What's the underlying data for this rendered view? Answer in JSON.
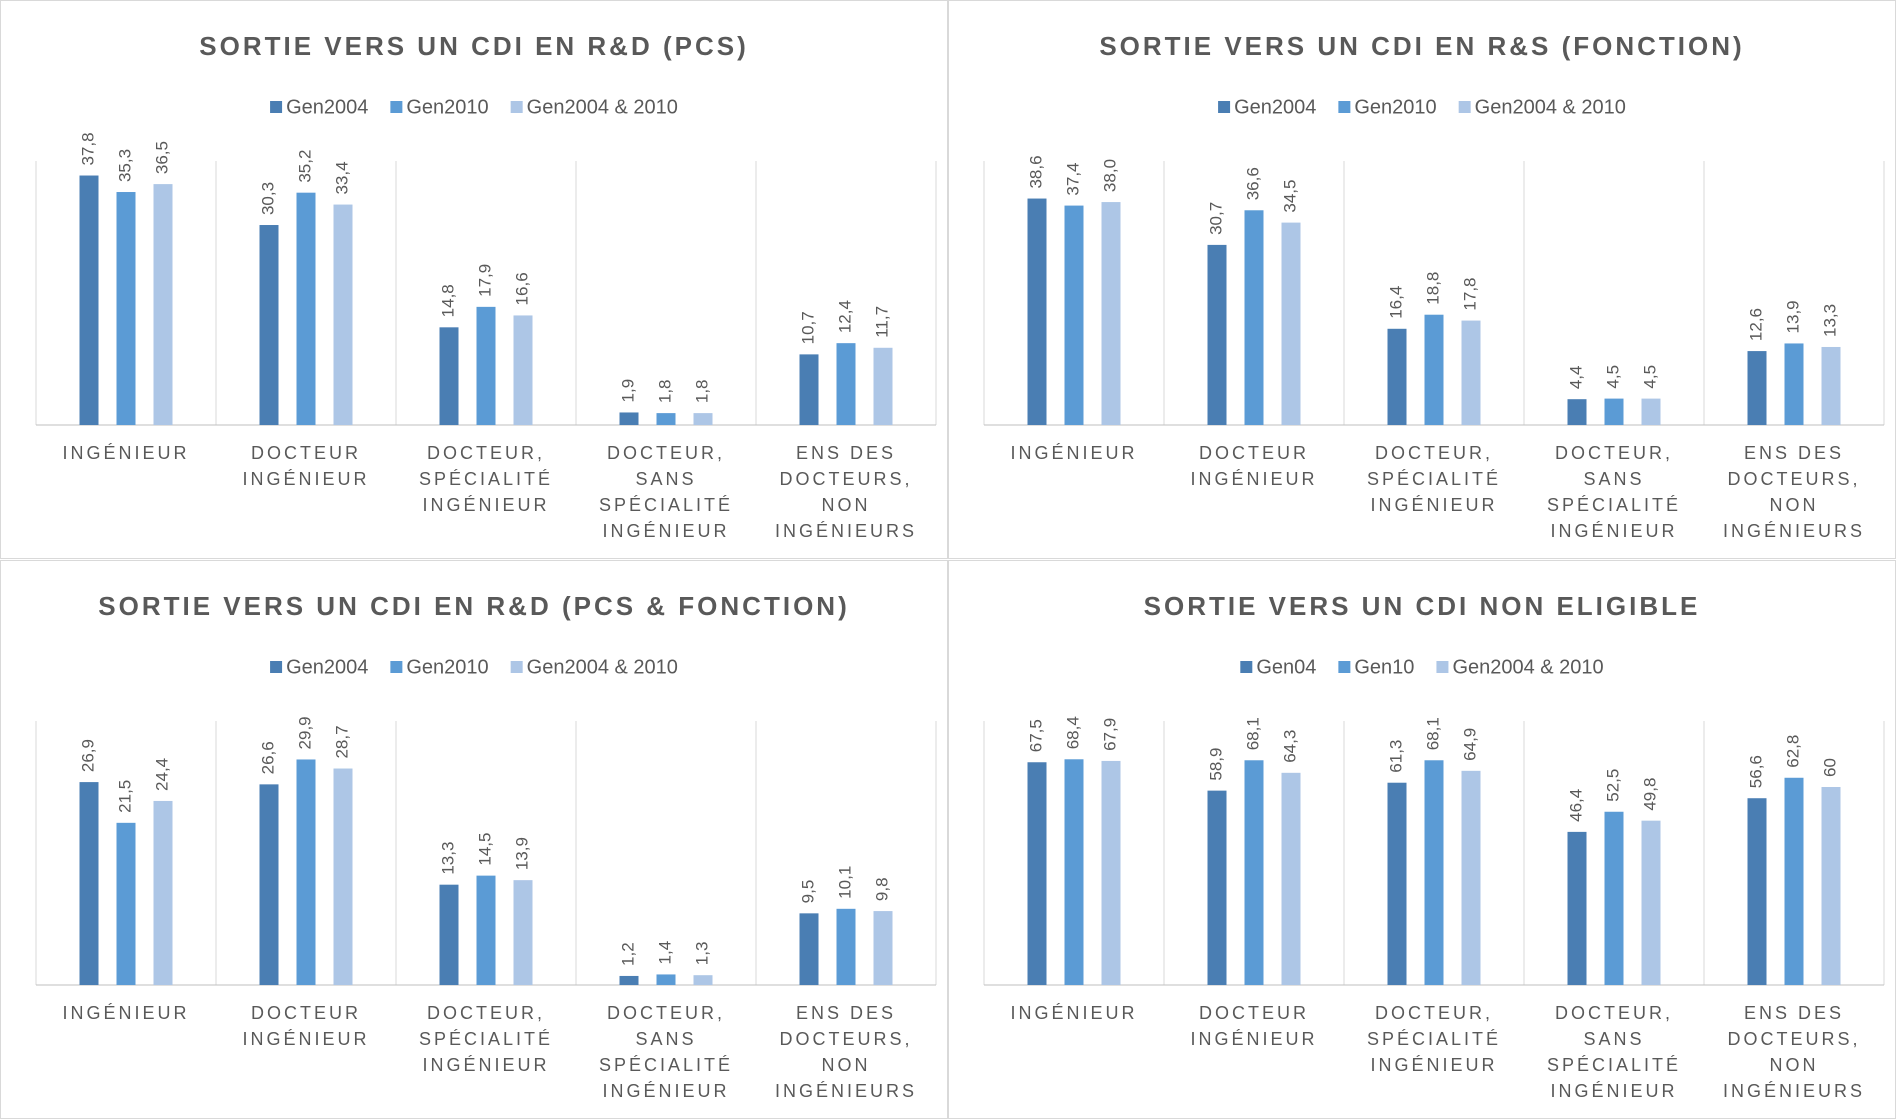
{
  "chart_data": [
    {
      "type": "bar",
      "title": "SORTIE VERS UN CDI EN R&D (PCS)",
      "categories": [
        "INGÉNIEUR",
        "DOCTEUR\nINGÉNIEUR",
        "DOCTEUR,\nSPÉCIALITÉ\nINGÉNIEUR",
        "DOCTEUR,\nSANS\nSPÉCIALITÉ\nINGÉNIEUR",
        "ENS DES\nDOCTEURS,\nNON\nINGÉNIEURS"
      ],
      "ylim": [
        0,
        40
      ],
      "series": [
        {
          "name": "Gen2004",
          "color": "#4a7eb3",
          "values": [
            37.8,
            30.3,
            14.8,
            1.9,
            10.7
          ],
          "value_labels": [
            "37,8",
            "30,3",
            "14,8",
            "1,9",
            "10,7"
          ]
        },
        {
          "name": "Gen2010",
          "color": "#5b9bd5",
          "values": [
            35.3,
            35.2,
            17.9,
            1.8,
            12.4
          ],
          "value_labels": [
            "35,3",
            "35,2",
            "17,9",
            "1,8",
            "12,4"
          ]
        },
        {
          "name": "Gen2004 & 2010",
          "color": "#adc6e6",
          "values": [
            36.5,
            33.4,
            16.6,
            1.8,
            11.7
          ],
          "value_labels": [
            "36,5",
            "33,4",
            "16,6",
            "1,8",
            "11,7"
          ]
        }
      ]
    },
    {
      "type": "bar",
      "title": "SORTIE VERS UN CDI EN R&S (FONCTION)",
      "categories": [
        "INGÉNIEUR",
        "DOCTEUR\nINGÉNIEUR",
        "DOCTEUR,\nSPÉCIALITÉ\nINGÉNIEUR",
        "DOCTEUR,\nSANS\nSPÉCIALITÉ\nINGÉNIEUR",
        "ENS DES\nDOCTEURS,\nNON\nINGÉNIEURS"
      ],
      "ylim": [
        0,
        45
      ],
      "series": [
        {
          "name": "Gen2004",
          "color": "#4a7eb3",
          "values": [
            38.6,
            30.7,
            16.4,
            4.4,
            12.6
          ],
          "value_labels": [
            "38,6",
            "30,7",
            "16,4",
            "4,4",
            "12,6"
          ]
        },
        {
          "name": "Gen2010",
          "color": "#5b9bd5",
          "values": [
            37.4,
            36.6,
            18.8,
            4.5,
            13.9
          ],
          "value_labels": [
            "37,4",
            "36,6",
            "18,8",
            "4,5",
            "13,9"
          ]
        },
        {
          "name": "Gen2004 & 2010",
          "color": "#adc6e6",
          "values": [
            38.0,
            34.5,
            17.8,
            4.5,
            13.3
          ],
          "value_labels": [
            "38,0",
            "34,5",
            "17,8",
            "4,5",
            "13,3"
          ]
        }
      ]
    },
    {
      "type": "bar",
      "title": "SORTIE VERS UN CDI EN R&D (PCS & FONCTION)",
      "categories": [
        "INGÉNIEUR",
        "DOCTEUR\nINGÉNIEUR",
        "DOCTEUR,\nSPÉCIALITÉ\nINGÉNIEUR",
        "DOCTEUR,\nSANS\nSPÉCIALITÉ\nINGÉNIEUR",
        "ENS DES\nDOCTEURS,\nNON\nINGÉNIEURS"
      ],
      "ylim": [
        0,
        35
      ],
      "series": [
        {
          "name": "Gen2004",
          "color": "#4a7eb3",
          "values": [
            26.9,
            26.6,
            13.3,
            1.2,
            9.5
          ],
          "value_labels": [
            "26,9",
            "26,6",
            "13,3",
            "1,2",
            "9,5"
          ]
        },
        {
          "name": "Gen2010",
          "color": "#5b9bd5",
          "values": [
            21.5,
            29.9,
            14.5,
            1.4,
            10.1
          ],
          "value_labels": [
            "21,5",
            "29,9",
            "14,5",
            "1,4",
            "10,1"
          ]
        },
        {
          "name": "Gen2004 & 2010",
          "color": "#adc6e6",
          "values": [
            24.4,
            28.7,
            13.9,
            1.3,
            9.8
          ],
          "value_labels": [
            "24,4",
            "28,7",
            "13,9",
            "1,3",
            "9,8"
          ]
        }
      ]
    },
    {
      "type": "bar",
      "title": "SORTIE VERS UN CDI NON ELIGIBLE",
      "categories": [
        "INGÉNIEUR",
        "DOCTEUR\nINGÉNIEUR",
        "DOCTEUR,\nSPÉCIALITÉ\nINGÉNIEUR",
        "DOCTEUR,\nSANS\nSPÉCIALITÉ\nINGÉNIEUR",
        "ENS DES\nDOCTEURS,\nNON\nINGÉNIEURS"
      ],
      "ylim": [
        0,
        80
      ],
      "series": [
        {
          "name": "Gen04",
          "color": "#4a7eb3",
          "values": [
            67.5,
            58.9,
            61.3,
            46.4,
            56.6
          ],
          "value_labels": [
            "67,5",
            "58,9",
            "61,3",
            "46,4",
            "56,6"
          ]
        },
        {
          "name": "Gen10",
          "color": "#5b9bd5",
          "values": [
            68.4,
            68.1,
            68.1,
            52.5,
            62.8
          ],
          "value_labels": [
            "68,4",
            "68,1",
            "68,1",
            "52,5",
            "62,8"
          ]
        },
        {
          "name": "Gen2004 & 2010",
          "color": "#adc6e6",
          "values": [
            67.9,
            64.3,
            64.9,
            49.8,
            60
          ],
          "value_labels": [
            "67,9",
            "64,3",
            "64,9",
            "49,8",
            "60"
          ]
        }
      ]
    }
  ]
}
